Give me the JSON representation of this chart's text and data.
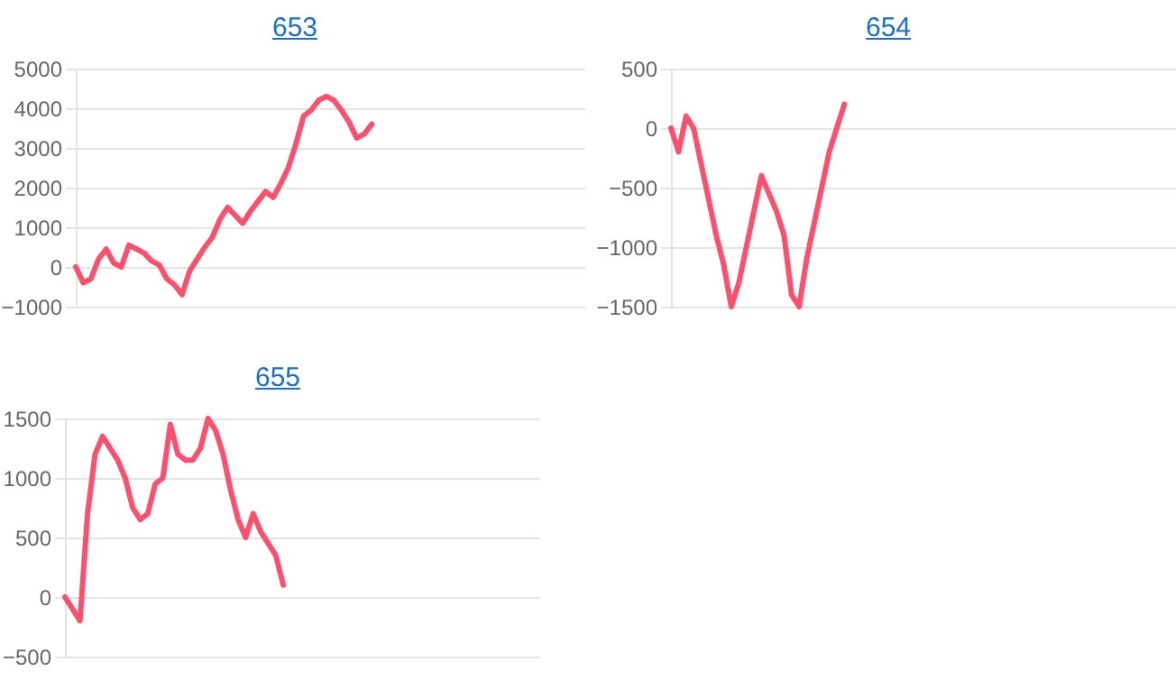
{
  "chart_data": [
    {
      "type": "line",
      "title": "653",
      "tick_labels": "y",
      "grid": "y",
      "ylim": [
        -1000,
        5000
      ],
      "yticks": [
        -1000,
        0,
        1000,
        2000,
        3000,
        4000,
        5000
      ],
      "categories": [
        null,
        null,
        null,
        null,
        null,
        null,
        null,
        null,
        null,
        null,
        null,
        null,
        null,
        null,
        null,
        null,
        null,
        null,
        null,
        null,
        null,
        null,
        null,
        null,
        null,
        null,
        null,
        null,
        null,
        null,
        null,
        null,
        null,
        null,
        null,
        null,
        null,
        null,
        null,
        null,
        null,
        null,
        null,
        null,
        null,
        null,
        null,
        null,
        null,
        null,
        null,
        null,
        null,
        null,
        null,
        null,
        null,
        null,
        null,
        null,
        null,
        null,
        null,
        null,
        null,
        null,
        null,
        null
      ],
      "series": [
        {
          "color": "#ff4f6d",
          "values": [
            0,
            -400,
            -300,
            200,
            450,
            100,
            0,
            550,
            450,
            350,
            150,
            50,
            -300,
            -450,
            -700,
            -100,
            200,
            500,
            750,
            1200,
            1500,
            1300,
            1100,
            1400,
            1650,
            1900,
            1750,
            2100,
            2500,
            3100,
            3800,
            3950,
            4200,
            4300,
            4200,
            3950,
            3650,
            3250,
            3350,
            3600,
            null,
            null,
            null,
            null,
            null,
            null,
            null,
            null,
            null,
            null,
            null,
            null,
            null,
            null,
            null,
            null,
            null,
            null,
            null,
            null,
            null,
            null,
            null,
            null,
            null,
            null,
            null,
            null
          ]
        }
      ]
    },
    {
      "type": "line",
      "title": "654",
      "tick_labels": "y",
      "grid": "y",
      "ylim": [
        -1500,
        500
      ],
      "yticks": [
        -1500,
        -1000,
        -500,
        0,
        500
      ],
      "categories": [
        null,
        null,
        null,
        null,
        null,
        null,
        null,
        null,
        null,
        null,
        null,
        null,
        null,
        null,
        null,
        null,
        null,
        null,
        null,
        null,
        null,
        null,
        null,
        null,
        null,
        null,
        null,
        null,
        null,
        null,
        null,
        null,
        null,
        null,
        null,
        null,
        null,
        null,
        null,
        null,
        null,
        null,
        null,
        null,
        null,
        null,
        null,
        null,
        null,
        null,
        null,
        null,
        null,
        null,
        null,
        null,
        null,
        null,
        null,
        null,
        null,
        null,
        null,
        null,
        null,
        null,
        null,
        null
      ],
      "series": [
        {
          "color": "#ff4f6d",
          "values": [
            0,
            -200,
            100,
            0,
            -300,
            -600,
            -900,
            -1150,
            -1500,
            -1300,
            -1000,
            -700,
            -400,
            -550,
            -700,
            -900,
            -1400,
            -1500,
            -1100,
            -800,
            -500,
            -200,
            0,
            200,
            null,
            null,
            null,
            null,
            null,
            null,
            null,
            null,
            null,
            null,
            null,
            null,
            null,
            null,
            null,
            null,
            null,
            null,
            null,
            null,
            null,
            null,
            null,
            null,
            null,
            null,
            null,
            null,
            null,
            null,
            null,
            null,
            null,
            null,
            null,
            null,
            null,
            null,
            null,
            null,
            null,
            null,
            null,
            null
          ]
        }
      ]
    },
    {
      "type": "line",
      "title": "655",
      "tick_labels": "y",
      "grid": "y",
      "ylim": [
        -500,
        1500
      ],
      "yticks": [
        -500,
        0,
        500,
        1000,
        1500
      ],
      "categories": [
        null,
        null,
        null,
        null,
        null,
        null,
        null,
        null,
        null,
        null,
        null,
        null,
        null,
        null,
        null,
        null,
        null,
        null,
        null,
        null,
        null,
        null,
        null,
        null,
        null,
        null,
        null,
        null,
        null,
        null,
        null,
        null,
        null,
        null,
        null,
        null,
        null,
        null,
        null,
        null,
        null,
        null,
        null,
        null,
        null,
        null,
        null,
        null,
        null,
        null,
        null,
        null,
        null,
        null,
        null,
        null,
        null,
        null,
        null,
        null,
        null,
        null,
        null,
        null
      ],
      "series": [
        {
          "color": "#ff4f6d",
          "values": [
            0,
            -100,
            -200,
            700,
            1200,
            1350,
            1250,
            1150,
            1000,
            750,
            650,
            700,
            950,
            1000,
            1450,
            1200,
            1150,
            1150,
            1250,
            1500,
            1400,
            1200,
            900,
            650,
            500,
            700,
            550,
            450,
            350,
            100,
            null,
            null,
            null,
            null,
            null,
            null,
            null,
            null,
            null,
            null,
            null,
            null,
            null,
            null,
            null,
            null,
            null,
            null,
            null,
            null,
            null,
            null,
            null,
            null,
            null,
            null,
            null,
            null,
            null,
            null,
            null,
            null,
            null,
            null
          ]
        }
      ]
    }
  ]
}
